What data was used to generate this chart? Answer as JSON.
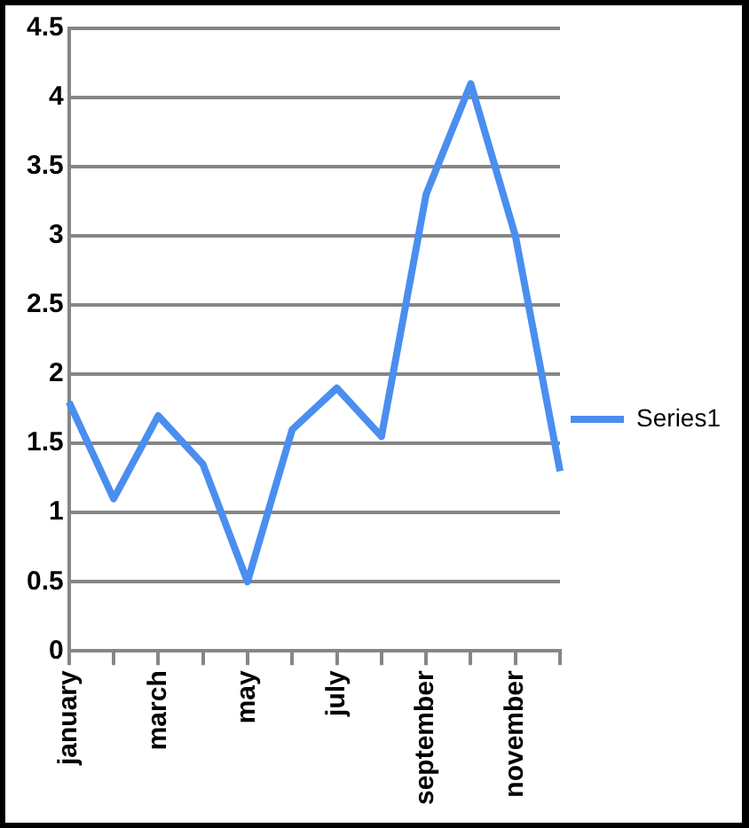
{
  "chart_data": {
    "type": "line",
    "categories": [
      "january",
      null,
      "march",
      null,
      "may",
      null,
      "july",
      null,
      "september",
      null,
      "november",
      null
    ],
    "series": [
      {
        "name": "Series1",
        "color": "#4a8ef0",
        "values": [
          1.8,
          1.1,
          1.7,
          1.35,
          0.5,
          1.6,
          1.9,
          1.55,
          3.3,
          4.1,
          3.0,
          1.3
        ]
      }
    ],
    "ylim": [
      0,
      4.5
    ],
    "yticks": [
      0,
      0.5,
      1,
      1.5,
      2,
      2.5,
      3,
      3.5,
      4,
      4.5
    ],
    "grid": "y",
    "legend": "right",
    "marker": "none",
    "line_style": "solid"
  }
}
